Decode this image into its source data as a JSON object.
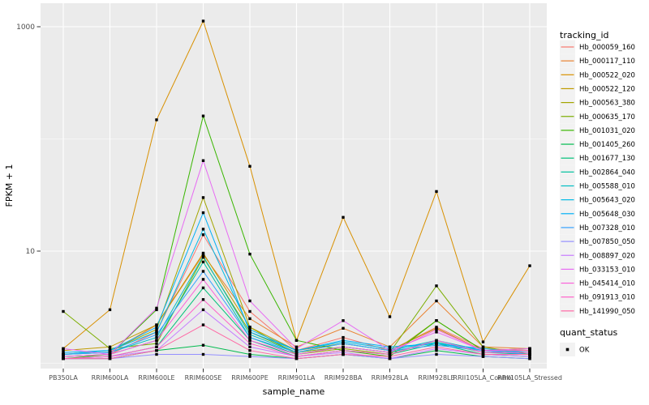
{
  "figure": {
    "background": "#ffffff",
    "panel_background": "#EBEBEB",
    "gridline_color": "#FFFFFF",
    "tick_color": "#333333",
    "tick_label_color": "#4D4D4D",
    "point_color": "#000000",
    "legend_key_background": "#F2F2F2"
  },
  "axes": {
    "y_title": "FPKM + 1",
    "x_title": "sample_name",
    "y_tick_labels": [
      "1000",
      "10"
    ]
  },
  "legend": {
    "tracking_title": "tracking_id",
    "quant_title": "quant_status",
    "quant_item_label": "OK",
    "quant_marker": "black-square-point-icon"
  },
  "chart_data": {
    "type": "line",
    "title": "",
    "xlabel": "sample_name",
    "ylabel": "FPKM + 1",
    "y_scale": "log10",
    "ylim": [
      0.9,
      1650
    ],
    "y_ticks": [
      1000,
      10
    ],
    "y_gridlines_major": [
      1000,
      10
    ],
    "y_gridlines_minor": [
      100,
      1
    ],
    "grid": true,
    "legend_position": "right",
    "point_shape": "square",
    "point_color": "#000000",
    "categories": [
      "PB350LA",
      "RRIM600LA",
      "RRIM600LE",
      "RRIM600SE",
      "RRIM600PE",
      "RRIM901LA",
      "RRIM928BA",
      "RRIM928LA",
      "RRIM928LE",
      "RRII105LA_Control",
      "RRII105LA_Stressed"
    ],
    "series": [
      {
        "name": "Hb_000059_160",
        "color": "#F8766D",
        "quant_status": "OK",
        "values": [
          1.15,
          1.2,
          1.9,
          14,
          2.9,
          1.3,
          1.7,
          1.3,
          2.1,
          1.35,
          1.3
        ]
      },
      {
        "name": "Hb_000117_110",
        "color": "#EA8331",
        "quant_status": "OK",
        "values": [
          1.2,
          1.25,
          2.2,
          9.3,
          2.5,
          1.4,
          2.05,
          1.4,
          3.6,
          1.4,
          1.35
        ]
      },
      {
        "name": "Hb_000522_020",
        "color": "#D89000",
        "quant_status": "OK",
        "values": [
          1.35,
          3.0,
          148,
          1124,
          57,
          1.6,
          20,
          2.6,
          34,
          1.55,
          7.4
        ]
      },
      {
        "name": "Hb_000522_120",
        "color": "#C09B00",
        "quant_status": "OK",
        "values": [
          1.3,
          1.4,
          2.2,
          9.6,
          2.1,
          1.3,
          1.5,
          1.3,
          2.05,
          1.3,
          1.35
        ]
      },
      {
        "name": "Hb_000563_380",
        "color": "#A3A500",
        "quant_status": "OK",
        "values": [
          1.2,
          1.3,
          2.0,
          30,
          2.1,
          1.2,
          1.35,
          1.2,
          2.4,
          1.3,
          1.3
        ]
      },
      {
        "name": "Hb_000635_170",
        "color": "#7CAE00",
        "quant_status": "OK",
        "values": [
          2.9,
          1.35,
          1.5,
          8.8,
          1.9,
          1.25,
          1.4,
          1.25,
          4.9,
          1.4,
          1.2
        ]
      },
      {
        "name": "Hb_001031_020",
        "color": "#39B600",
        "quant_status": "OK",
        "values": [
          1.1,
          1.2,
          3.0,
          160,
          9.4,
          1.6,
          1.3,
          1.15,
          2.4,
          1.3,
          1.35
        ]
      },
      {
        "name": "Hb_001405_260",
        "color": "#00BB4E",
        "quant_status": "OK",
        "values": [
          1.1,
          1.1,
          1.3,
          1.45,
          1.2,
          1.1,
          1.2,
          1.1,
          1.3,
          1.15,
          1.1
        ]
      },
      {
        "name": "Hb_001677_130",
        "color": "#00C079",
        "quant_status": "OK",
        "values": [
          1.1,
          1.15,
          1.4,
          4.7,
          1.6,
          1.15,
          1.3,
          1.2,
          1.5,
          1.2,
          1.15
        ]
      },
      {
        "name": "Hb_002864_040",
        "color": "#00C19F",
        "quant_status": "OK",
        "values": [
          1.15,
          1.2,
          1.6,
          8.0,
          1.7,
          1.2,
          1.4,
          1.25,
          1.55,
          1.25,
          1.2
        ]
      },
      {
        "name": "Hb_005588_010",
        "color": "#00BFC4",
        "quant_status": "OK",
        "values": [
          1.2,
          1.25,
          1.7,
          9.0,
          1.8,
          1.25,
          1.5,
          1.3,
          1.6,
          1.3,
          1.2
        ]
      },
      {
        "name": "Hb_005643_020",
        "color": "#00BAE5",
        "quant_status": "OK",
        "values": [
          1.2,
          1.3,
          1.9,
          15.7,
          2.0,
          1.3,
          1.55,
          1.35,
          1.5,
          1.3,
          1.25
        ]
      },
      {
        "name": "Hb_005648_030",
        "color": "#00B0F6",
        "quant_status": "OK",
        "values": [
          1.25,
          1.3,
          2.1,
          22,
          1.9,
          1.3,
          1.6,
          1.4,
          1.5,
          1.35,
          1.25
        ]
      },
      {
        "name": "Hb_007328_010",
        "color": "#35A2FF",
        "quant_status": "OK",
        "values": [
          1.2,
          1.25,
          1.8,
          6.6,
          1.7,
          1.25,
          1.5,
          1.3,
          1.45,
          1.3,
          1.2
        ]
      },
      {
        "name": "Hb_007850_050",
        "color": "#9590FF",
        "quant_status": "OK",
        "values": [
          1.1,
          1.1,
          1.2,
          1.2,
          1.15,
          1.1,
          1.2,
          1.1,
          1.2,
          1.15,
          1.1
        ]
      },
      {
        "name": "Hb_008897_020",
        "color": "#C77CFF",
        "quant_status": "OK",
        "values": [
          1.1,
          1.15,
          1.3,
          3.0,
          1.4,
          1.15,
          1.25,
          1.1,
          1.35,
          1.2,
          1.15
        ]
      },
      {
        "name": "Hb_033153_010",
        "color": "#E76BF3",
        "quant_status": "OK",
        "values": [
          1.35,
          1.2,
          3.1,
          64,
          3.6,
          1.35,
          2.4,
          1.3,
          1.9,
          1.3,
          1.35
        ]
      },
      {
        "name": "Hb_045414_010",
        "color": "#FA62DB",
        "quant_status": "OK",
        "values": [
          1.15,
          1.2,
          1.6,
          5.6,
          1.6,
          1.2,
          1.4,
          1.25,
          2.0,
          1.3,
          1.3
        ]
      },
      {
        "name": "Hb_091913_010",
        "color": "#FF61C9",
        "quant_status": "OK",
        "values": [
          1.1,
          1.15,
          1.4,
          3.7,
          1.5,
          1.15,
          1.3,
          1.2,
          1.6,
          1.25,
          1.25
        ]
      },
      {
        "name": "Hb_141990_050",
        "color": "#FF67A4",
        "quant_status": "OK",
        "values": [
          1.1,
          1.1,
          1.3,
          2.2,
          1.3,
          1.1,
          1.2,
          1.15,
          1.4,
          1.2,
          1.2
        ]
      }
    ]
  }
}
